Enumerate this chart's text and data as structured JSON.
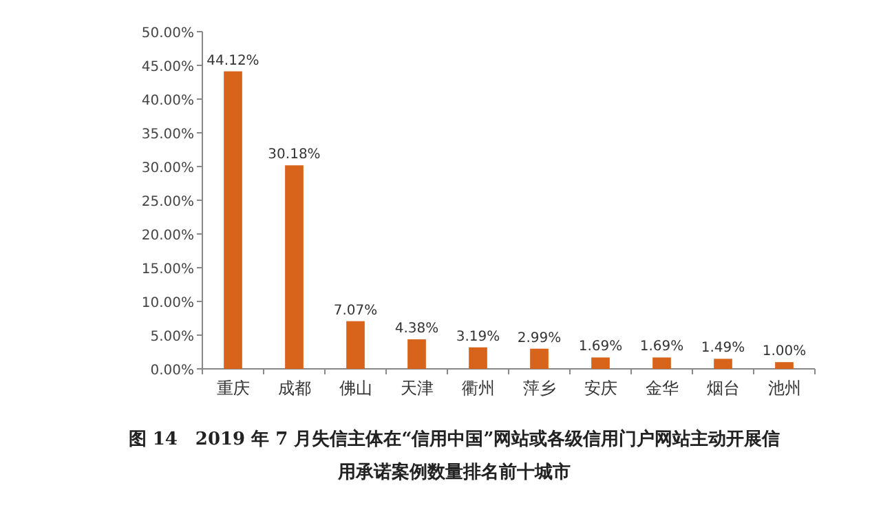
{
  "chart_data": {
    "type": "bar",
    "title": "图 14　2019 年 7 月失信主体在“信用中国”网站或各级信用门户网站主动开展信用承诺案例数量排名前十城市",
    "categories": [
      "重庆",
      "成都",
      "佛山",
      "天津",
      "衢州",
      "萍乡",
      "安庆",
      "金华",
      "烟台",
      "池州"
    ],
    "values": [
      44.12,
      30.18,
      7.07,
      4.38,
      3.19,
      2.99,
      1.69,
      1.69,
      1.49,
      1.0
    ],
    "value_labels": [
      "44.12%",
      "30.18%",
      "7.07%",
      "4.38%",
      "3.19%",
      "2.99%",
      "1.69%",
      "1.69%",
      "1.49%",
      "1.00%"
    ],
    "color": "#d8641c",
    "ylim": [
      0,
      50
    ],
    "yticks": [
      {
        "value": 0,
        "label": "0.00%"
      },
      {
        "value": 5,
        "label": "5.00%"
      },
      {
        "value": 10,
        "label": "10.00%"
      },
      {
        "value": 15,
        "label": "15.00%"
      },
      {
        "value": 20,
        "label": "20.00%"
      },
      {
        "value": 25,
        "label": "25.00%"
      },
      {
        "value": 30,
        "label": "30.00%"
      },
      {
        "value": 35,
        "label": "35.00%"
      },
      {
        "value": 40,
        "label": "40.00%"
      },
      {
        "value": 45,
        "label": "45.00%"
      },
      {
        "value": 50,
        "label": "50.00%"
      }
    ],
    "grid": false
  }
}
